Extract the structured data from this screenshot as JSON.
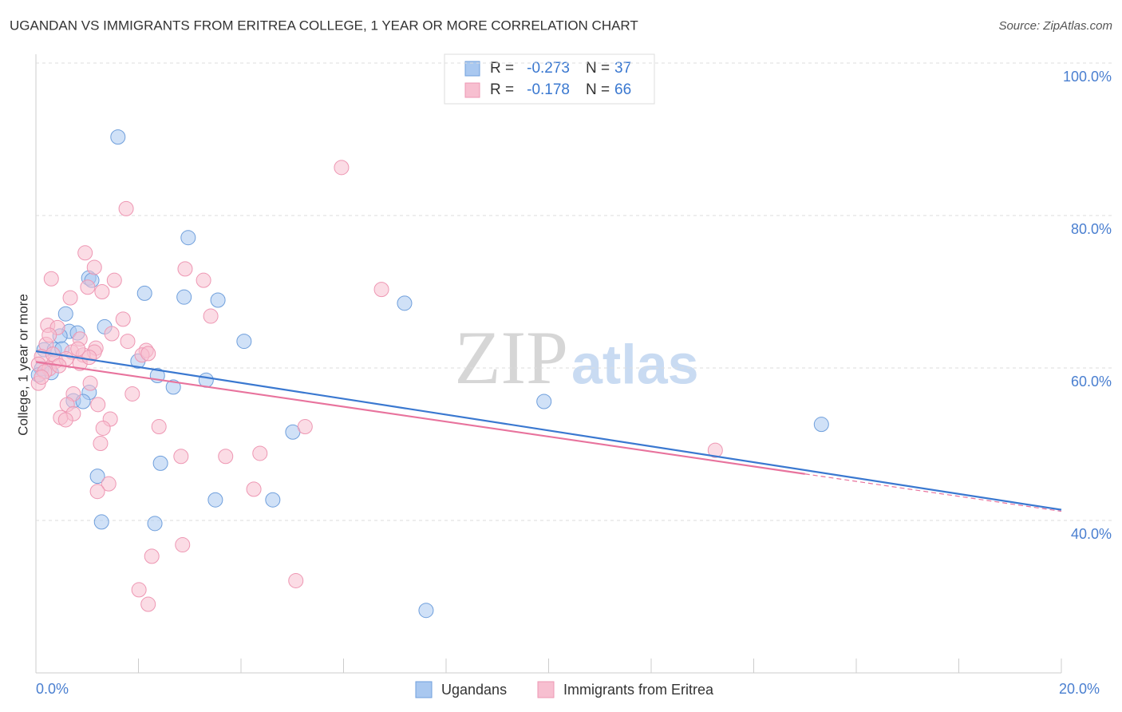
{
  "chart_data": {
    "type": "scatter",
    "title": "UGANDAN VS IMMIGRANTS FROM ERITREA COLLEGE, 1 YEAR OR MORE CORRELATION CHART",
    "source": "Source: ZipAtlas.com",
    "y_label": "College, 1 year or more",
    "watermark": [
      "ZIP",
      "atlas"
    ],
    "stats_labels": {
      "r": "R =",
      "n": "N ="
    },
    "xlim": [
      0,
      20
    ],
    "ylim": [
      20,
      100
    ],
    "xticks": [
      {
        "value": 0,
        "label": "0.0%"
      },
      {
        "value": 20,
        "label": "20.0%"
      }
    ],
    "xminorticks": [
      2,
      4,
      6,
      8,
      10,
      12,
      14,
      16,
      18
    ],
    "yticks": [
      {
        "value": 40,
        "label": "40.0%"
      },
      {
        "value": 60,
        "label": "60.0%"
      },
      {
        "value": 80,
        "label": "80.0%"
      },
      {
        "value": 100,
        "label": "100.0%"
      }
    ],
    "grid": true,
    "series": [
      {
        "name": "Ugandans",
        "color": "#a9c8f0",
        "stroke": "#6f9fdc",
        "line_color": "#3a78d0",
        "r": -0.273,
        "n": 37,
        "x": [
          1.6,
          2.97,
          1.03,
          1.09,
          2.12,
          2.89,
          3.55,
          7.19,
          0.58,
          1.34,
          0.65,
          0.81,
          0.47,
          4.06,
          0.16,
          0.36,
          0.51,
          1.99,
          0.11,
          0.3,
          2.37,
          3.32,
          2.68,
          1.04,
          0.73,
          0.92,
          9.91,
          15.32,
          5.01,
          2.43,
          1.2,
          3.5,
          4.62,
          1.28,
          2.32,
          7.61,
          0.05
        ],
        "values": [
          90.3,
          77.1,
          71.8,
          71.5,
          69.8,
          69.3,
          68.9,
          68.5,
          67.1,
          65.4,
          64.8,
          64.6,
          64.2,
          63.5,
          62.4,
          62.4,
          62.5,
          60.9,
          59.9,
          59.4,
          59.0,
          58.4,
          57.5,
          56.8,
          55.7,
          55.6,
          55.6,
          52.6,
          51.6,
          47.5,
          45.8,
          42.7,
          42.7,
          39.8,
          39.6,
          28.2,
          59.1
        ],
        "trend": {
          "x": [
            0,
            20
          ],
          "values": [
            62.2,
            41.4
          ]
        }
      },
      {
        "name": "Immigrants from Eritrea",
        "color": "#f7bfd0",
        "stroke": "#ee97b3",
        "line_color": "#e8739d",
        "r": -0.178,
        "n": 66,
        "x": [
          5.96,
          1.76,
          0.96,
          1.14,
          2.91,
          0.3,
          1.53,
          3.27,
          6.74,
          1.01,
          1.29,
          0.67,
          3.41,
          1.7,
          0.23,
          0.42,
          1.48,
          0.86,
          1.79,
          0.2,
          1.17,
          2.15,
          0.7,
          1.14,
          2.07,
          0.92,
          0.11,
          0.39,
          0.59,
          0.05,
          0.26,
          0.17,
          0.05,
          1.06,
          1.88,
          0.73,
          1.21,
          0.61,
          0.73,
          0.48,
          1.45,
          0.58,
          5.25,
          2.4,
          1.31,
          1.26,
          4.37,
          2.83,
          3.7,
          13.25,
          1.42,
          1.2,
          4.25,
          2.86,
          2.26,
          5.07,
          2.01,
          2.19,
          0.26,
          0.82,
          0.33,
          0.86,
          0.45,
          0.11,
          1.04,
          2.19
        ],
        "values": [
          86.3,
          80.9,
          75.1,
          73.2,
          73.0,
          71.7,
          71.5,
          71.5,
          70.3,
          70.6,
          70.0,
          69.2,
          66.8,
          66.4,
          65.6,
          65.3,
          64.5,
          63.8,
          63.5,
          63.1,
          62.6,
          62.3,
          62.1,
          62.1,
          61.7,
          61.7,
          61.5,
          60.9,
          61.2,
          60.5,
          59.9,
          59.5,
          58.0,
          58.0,
          56.6,
          56.6,
          55.2,
          55.2,
          54.0,
          53.5,
          53.3,
          53.2,
          52.3,
          52.3,
          52.1,
          50.1,
          48.8,
          48.4,
          48.4,
          49.2,
          44.8,
          43.8,
          44.1,
          36.8,
          35.3,
          32.1,
          30.9,
          29.0,
          64.3,
          62.5,
          61.8,
          60.6,
          60.3,
          58.8,
          61.4,
          61.9
        ],
        "trend": {
          "x": [
            0,
            15
          ],
          "values": [
            60.8,
            46.1
          ]
        },
        "trend_extension": {
          "x": [
            15,
            20
          ],
          "values": [
            46.1,
            41.2
          ]
        }
      }
    ]
  }
}
